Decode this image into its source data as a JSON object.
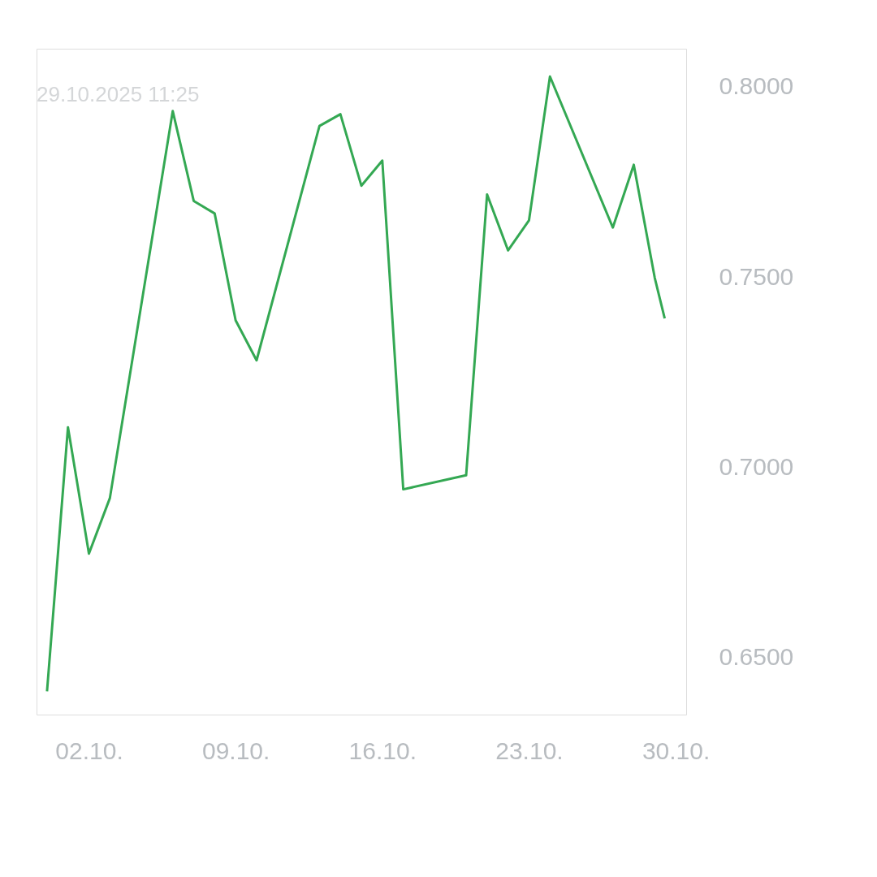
{
  "chart_data": {
    "type": "line",
    "subtitle": "29.10.2025 11:25",
    "x": [
      "2025-09-30",
      "2025-10-01",
      "2025-10-02",
      "2025-10-03",
      "2025-10-06",
      "2025-10-07",
      "2025-10-08",
      "2025-10-09",
      "2025-10-10",
      "2025-10-13",
      "2025-10-14",
      "2025-10-15",
      "2025-10-16",
      "2025-10-17",
      "2025-10-20",
      "2025-10-21",
      "2025-10-22",
      "2025-10-23",
      "2025-10-24",
      "2025-10-27",
      "2025-10-28",
      "2025-10-29",
      "2025-10-29T11:25"
    ],
    "series": [
      {
        "color": "#34a853",
        "values": [
          0.6411,
          0.7105,
          0.6773,
          0.6919,
          0.7936,
          0.77,
          0.7667,
          0.7386,
          0.7281,
          0.7897,
          0.7928,
          0.774,
          0.7806,
          0.6942,
          0.6979,
          0.7717,
          0.757,
          0.7649,
          0.8027,
          0.763,
          0.7795,
          0.7498,
          0.7391
        ]
      }
    ],
    "xlim": [
      "2025-09-29T12:00",
      "2025-10-30T12:00"
    ],
    "xticks": [
      {
        "value": "2025-10-02",
        "label": "02.10."
      },
      {
        "value": "2025-10-09",
        "label": "09.10."
      },
      {
        "value": "2025-10-16",
        "label": "16.10."
      },
      {
        "value": "2025-10-23",
        "label": "23.10."
      },
      {
        "value": "2025-10-30",
        "label": "30.10."
      }
    ],
    "ylim": [
      0.635,
      0.81
    ],
    "yticks": [
      {
        "value": 0.65,
        "label": "0.6500"
      },
      {
        "value": 0.7,
        "label": "0.7000"
      },
      {
        "value": 0.75,
        "label": "0.7500"
      },
      {
        "value": 0.8,
        "label": "0.8000"
      }
    ],
    "grid": false,
    "marker": "none",
    "line_style": "solid"
  }
}
